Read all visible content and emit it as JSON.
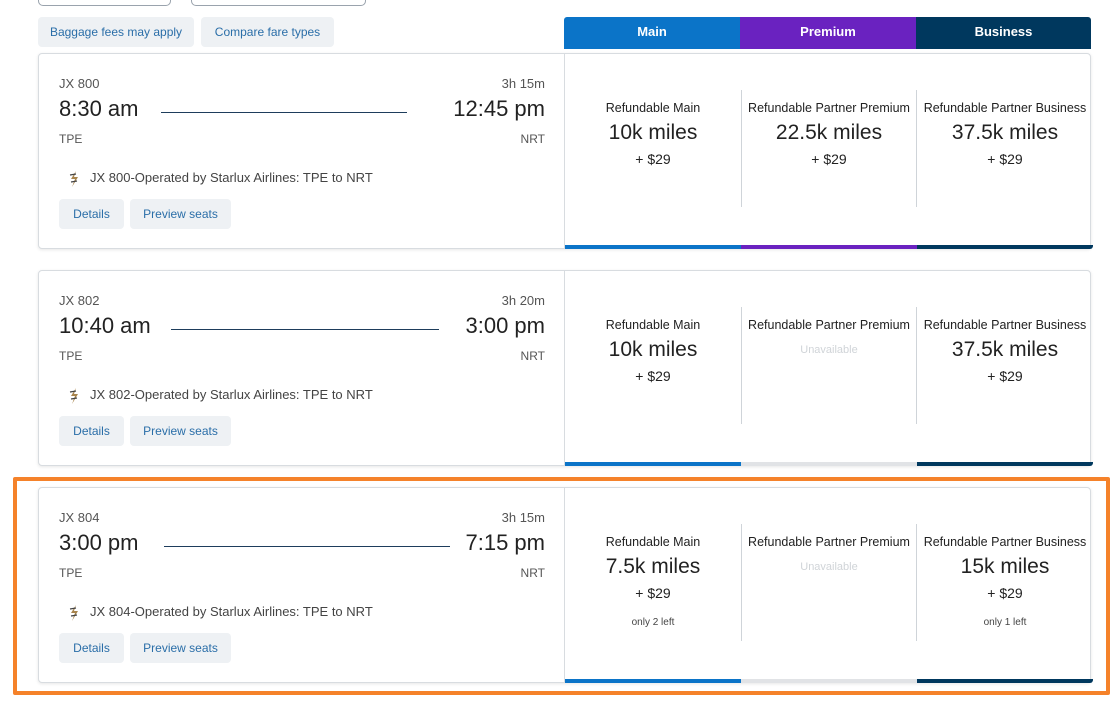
{
  "toolbar": {
    "baggage_label": "Baggage fees may apply",
    "compare_label": "Compare fare types"
  },
  "columns": [
    {
      "label": "Main",
      "color": "#0b74c8"
    },
    {
      "label": "Premium",
      "color": "#6a22c0"
    },
    {
      "label": "Business",
      "color": "#00385e"
    }
  ],
  "flights": [
    {
      "number": "JX 800",
      "duration": "3h 15m",
      "depart_time": "8:30 am",
      "arrive_time": "12:45 pm",
      "depart_code": "TPE",
      "arrive_code": "NRT",
      "operated_by": "JX 800-Operated by Starlux Airlines: TPE to NRT",
      "details_label": "Details",
      "preview_label": "Preview seats",
      "fares": [
        {
          "name": "Refundable Main",
          "miles": "10k miles",
          "fee": "+ $29",
          "note": ""
        },
        {
          "name": "Refundable Partner Premium",
          "miles": "22.5k miles",
          "fee": "+ $29",
          "note": ""
        },
        {
          "name": "Refundable Partner Business",
          "miles": "37.5k miles",
          "fee": "+ $29",
          "note": ""
        }
      ]
    },
    {
      "number": "JX 802",
      "duration": "3h 20m",
      "depart_time": "10:40 am",
      "arrive_time": "3:00 pm",
      "depart_code": "TPE",
      "arrive_code": "NRT",
      "operated_by": "JX 802-Operated by Starlux Airlines: TPE to NRT",
      "details_label": "Details",
      "preview_label": "Preview seats",
      "fares": [
        {
          "name": "Refundable Main",
          "miles": "10k miles",
          "fee": "+ $29",
          "note": ""
        },
        {
          "name": "Refundable Partner Premium",
          "unavailable": "Unavailable"
        },
        {
          "name": "Refundable Partner Business",
          "miles": "37.5k miles",
          "fee": "+ $29",
          "note": ""
        }
      ]
    },
    {
      "number": "JX 804",
      "duration": "3h 15m",
      "depart_time": "3:00 pm",
      "arrive_time": "7:15 pm",
      "depart_code": "TPE",
      "arrive_code": "NRT",
      "operated_by": "JX 804-Operated by Starlux Airlines: TPE to NRT",
      "details_label": "Details",
      "preview_label": "Preview seats",
      "fares": [
        {
          "name": "Refundable Main",
          "miles": "7.5k miles",
          "fee": "+ $29",
          "note": "only 2 left"
        },
        {
          "name": "Refundable Partner Premium",
          "unavailable": "Unavailable"
        },
        {
          "name": "Refundable Partner Business",
          "miles": "15k miles",
          "fee": "+ $29",
          "note": "only 1 left"
        }
      ]
    }
  ],
  "colors": {
    "unavailable_bar": "#e1e3e6",
    "highlight": "#f5822a"
  }
}
